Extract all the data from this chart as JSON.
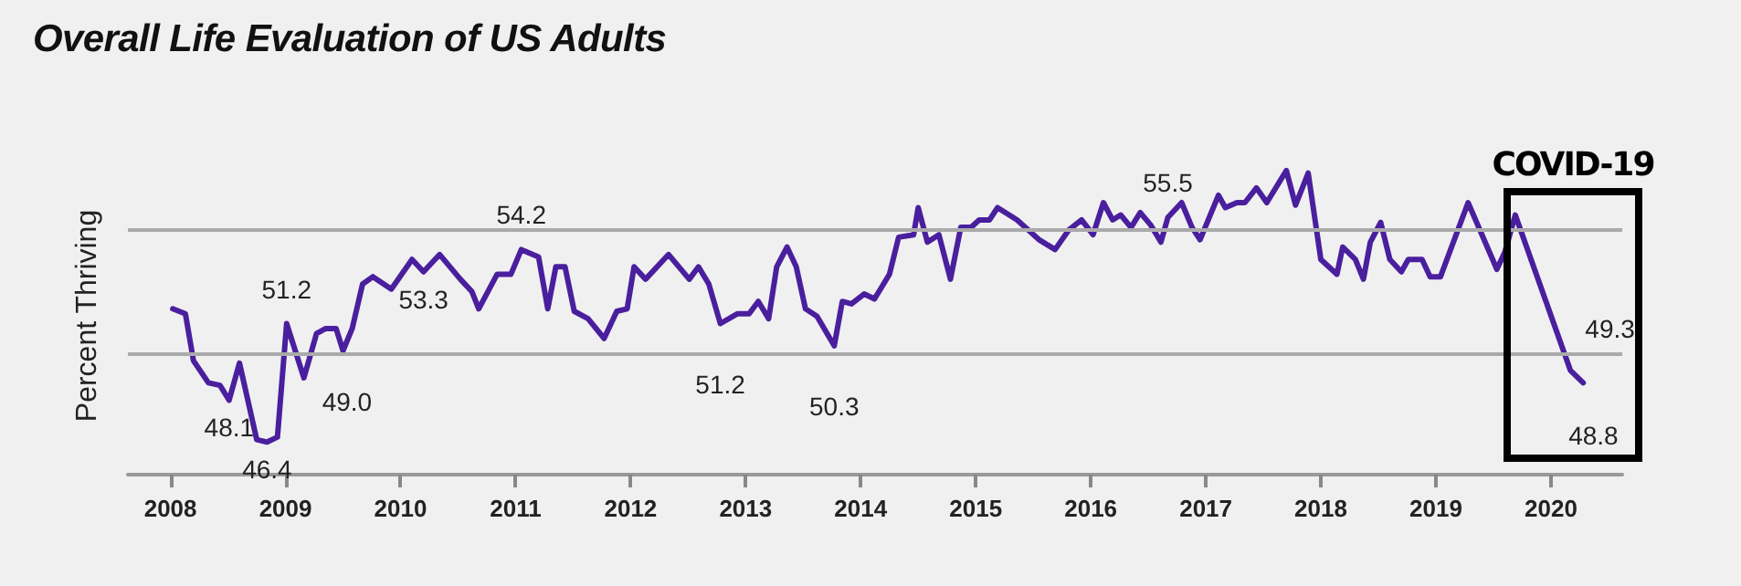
{
  "chart_data": {
    "type": "line",
    "title": "Overall Life Evaluation of US Adults",
    "ylabel": "Percent Thriving",
    "annotations": [
      "COVID-19"
    ],
    "x": [
      2008.02,
      2008.13,
      2008.2,
      2008.33,
      2008.43,
      2008.51,
      2008.6,
      2008.75,
      2008.84,
      2008.93,
      2009.01,
      2009.16,
      2009.27,
      2009.35,
      2009.44,
      2009.5,
      2009.58,
      2009.67,
      2009.76,
      2009.92,
      2010.1,
      2010.2,
      2010.34,
      2010.52,
      2010.62,
      2010.68,
      2010.84,
      2010.96,
      2011.05,
      2011.2,
      2011.28,
      2011.35,
      2011.43,
      2011.51,
      2011.63,
      2011.77,
      2011.88,
      2011.97,
      2012.03,
      2012.13,
      2012.33,
      2012.51,
      2012.59,
      2012.68,
      2012.78,
      2012.93,
      2013.03,
      2013.11,
      2013.2,
      2013.27,
      2013.36,
      2013.44,
      2013.52,
      2013.62,
      2013.77,
      2013.84,
      2013.92,
      2014.03,
      2014.12,
      2014.25,
      2014.33,
      2014.46,
      2014.5,
      2014.58,
      2014.68,
      2014.78,
      2014.87,
      2014.96,
      2015.03,
      2015.12,
      2015.19,
      2015.36,
      2015.55,
      2015.69,
      2015.81,
      2015.92,
      2016.02,
      2016.11,
      2016.19,
      2016.26,
      2016.35,
      2016.43,
      2016.52,
      2016.61,
      2016.67,
      2016.79,
      2016.88,
      2016.95,
      2017.11,
      2017.17,
      2017.27,
      2017.34,
      2017.44,
      2017.53,
      2017.7,
      2017.78,
      2017.89,
      2018.0,
      2018.14,
      2018.19,
      2018.3,
      2018.37,
      2018.43,
      2018.52,
      2018.6,
      2018.7,
      2018.76,
      2018.88,
      2018.95,
      2019.04,
      2019.28,
      2019.53,
      2019.6,
      2019.69,
      2020.17,
      2020.28
    ],
    "series": [
      {
        "color": "#4a1f9e",
        "values": [
          51.8,
          51.6,
          49.7,
          48.8,
          48.7,
          48.1,
          49.6,
          46.5,
          46.4,
          46.6,
          51.2,
          49.0,
          50.8,
          51.0,
          51.0,
          50.1,
          51.0,
          52.8,
          53.1,
          52.6,
          53.8,
          53.3,
          54.0,
          53.0,
          52.5,
          51.8,
          53.2,
          53.2,
          54.2,
          53.9,
          51.8,
          53.5,
          53.5,
          51.7,
          51.4,
          50.6,
          51.7,
          51.8,
          53.5,
          53.0,
          54.0,
          53.0,
          53.5,
          52.8,
          51.2,
          51.6,
          51.6,
          52.1,
          51.4,
          53.5,
          54.3,
          53.5,
          51.8,
          51.5,
          50.3,
          52.1,
          52.0,
          52.4,
          52.2,
          53.2,
          54.7,
          54.8,
          55.9,
          54.5,
          54.8,
          53.0,
          55.1,
          55.1,
          55.4,
          55.4,
          55.9,
          55.4,
          54.6,
          54.2,
          55.0,
          55.4,
          54.8,
          56.1,
          55.4,
          55.6,
          55.1,
          55.7,
          55.2,
          54.5,
          55.5,
          56.1,
          55.1,
          54.6,
          56.4,
          55.9,
          56.1,
          56.1,
          56.7,
          56.1,
          57.4,
          56.0,
          57.3,
          53.8,
          53.2,
          54.3,
          53.8,
          53.0,
          54.5,
          55.3,
          53.8,
          53.3,
          53.8,
          53.8,
          53.1,
          53.1,
          56.1,
          53.4,
          54.1,
          55.6,
          49.3,
          48.8
        ],
        "value_labels": [
          null,
          null,
          null,
          null,
          null,
          "48.1",
          null,
          null,
          "46.4",
          null,
          "51.2",
          "49.0",
          null,
          null,
          null,
          null,
          null,
          null,
          null,
          null,
          null,
          "53.3",
          null,
          null,
          null,
          null,
          null,
          null,
          "54.2",
          null,
          null,
          null,
          null,
          null,
          null,
          null,
          null,
          null,
          null,
          null,
          null,
          null,
          null,
          null,
          "51.2",
          null,
          null,
          null,
          null,
          null,
          null,
          null,
          null,
          null,
          "50.3",
          null,
          null,
          null,
          null,
          null,
          null,
          null,
          null,
          null,
          null,
          null,
          null,
          null,
          null,
          null,
          null,
          null,
          null,
          null,
          null,
          null,
          null,
          null,
          null,
          null,
          null,
          null,
          null,
          null,
          "55.5",
          null,
          null,
          null,
          null,
          null,
          null,
          null,
          null,
          null,
          null,
          null,
          null,
          null,
          null,
          null,
          null,
          null,
          null,
          null,
          null,
          null,
          null,
          null,
          null,
          null,
          null,
          null,
          null,
          null,
          "49.3",
          "48.8"
        ]
      }
    ],
    "xlim": [
      2007.63,
      2020.62
    ],
    "xticks": [
      2008,
      2009,
      2010,
      2011,
      2012,
      2013,
      2014,
      2015,
      2016,
      2017,
      2018,
      2019,
      2020
    ],
    "ref_lines": [
      {
        "axis": "y",
        "value": 50,
        "color": "#aaaaaa"
      },
      {
        "axis": "y",
        "value": 55,
        "color": "#aaaaaa"
      }
    ],
    "marker": "none",
    "line_style": "solid"
  }
}
